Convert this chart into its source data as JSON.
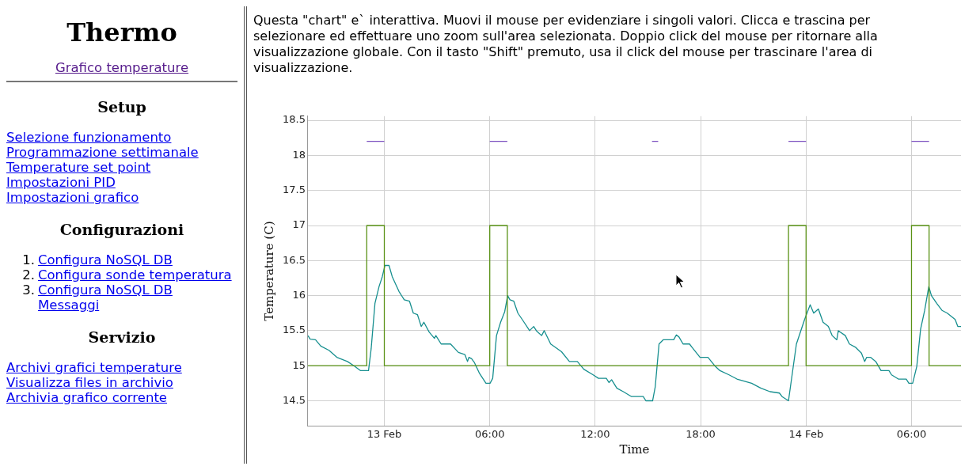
{
  "chart_data": [
    {
      "type": "other",
      "title": "Thermo",
      "annotations": [
        "Grafico temperature"
      ]
    },
    {
      "type": "other",
      "title": "Setup",
      "annotations": [
        "Selezione funzionamento",
        "Programmazione settimanale",
        "Temperature set point",
        "Impostazioni PID",
        "Impostazioni grafico"
      ]
    },
    {
      "type": "other",
      "title": "Configurazioni",
      "annotations": [
        "1. Configura NoSQL DB",
        "2. Configura sonde temperatura",
        "3. Configura NoSQL DB Messaggi"
      ]
    },
    {
      "type": "other",
      "title": "Servizio",
      "annotations": [
        "Archivi grafici temperature",
        "Visualizza files in archivio",
        "Archivia grafico corrente"
      ]
    },
    {
      "type": "line",
      "subtitle": "Questa \"chart\" e` interattiva. Muovi il mouse per evidenziare i singoli valori. Clicca e trascina per selezionare ed effettuare uno zoom sull'area selezionata. Doppio click del mouse per ritornare alla visualizzazione globale. Con il tasto \"Shift\" premuto, usa il click del mouse per trascinare l'area di visualizzazione.",
      "xlabel": "Time",
      "ylabel": "Temperature (C)",
      "grid": true,
      "marker": "none",
      "xlim": [
        "--02-12T19:39",
        "--02-14T08:49"
      ],
      "xticks": [
        {
          "value": "--02-13T00:00",
          "label": "13 Feb"
        },
        {
          "value": "--02-13T06:00",
          "label": "06:00"
        },
        {
          "value": "--02-13T12:00",
          "label": "12:00"
        },
        {
          "value": "--02-13T18:00",
          "label": "18:00"
        },
        {
          "value": "--02-14T00:00",
          "label": "14 Feb"
        },
        {
          "value": "--02-14T06:00",
          "label": "06:00"
        }
      ],
      "ylim": [
        14.14,
        18.56
      ],
      "yticks": [
        14.5,
        15,
        15.5,
        16,
        16.5,
        17,
        17.5,
        18,
        18.5
      ],
      "series": [
        {
          "type": "step",
          "color": "#5a9216",
          "x": [
            "--02-12T19:39",
            "--02-12T23:00",
            "--02-13T00:00",
            "--02-13T06:00",
            "--02-13T07:00",
            "--02-13T23:00",
            "--02-14T00:00",
            "--02-14T06:00",
            "--02-14T07:00",
            "--02-14T08:49"
          ],
          "values": [
            15,
            17,
            15,
            17,
            15,
            17,
            15,
            17,
            15,
            15
          ]
        },
        {
          "type": "line",
          "color": "#7b4fbf",
          "x": [
            "--02-12T23:00",
            "--02-13T00:00",
            "--02-13T00:01",
            "--02-13T06:00",
            "--02-13T07:00",
            "--02-13T07:01",
            "--02-13T15:14",
            "--02-13T15:35",
            "--02-13T15:36",
            "--02-13T23:00",
            "--02-14T00:00",
            "--02-14T00:01",
            "--02-14T06:00",
            "--02-14T07:00"
          ],
          "values": [
            18.2,
            18.2,
            null,
            18.2,
            18.2,
            null,
            18.2,
            18.2,
            null,
            18.2,
            18.2,
            null,
            18.2,
            18.2
          ]
        },
        {
          "type": "line",
          "color": "#178f8f",
          "x": [
            "--02-12T19:39",
            "--02-12T19:47",
            "--02-12T20:05",
            "--02-12T20:23",
            "--02-12T20:51",
            "--02-12T21:18",
            "--02-12T21:54",
            "--02-12T22:16",
            "--02-12T22:39",
            "--02-12T23:06",
            "--02-12T23:15",
            "--02-12T23:28",
            "--02-12T23:42",
            "--02-12T23:53",
            "--02-13T00:02",
            "--02-13T00:16",
            "--02-13T00:27",
            "--02-13T00:50",
            "--02-13T01:08",
            "--02-13T01:26",
            "--02-13T01:39",
            "--02-13T01:53",
            "--02-13T02:06",
            "--02-13T02:15",
            "--02-13T02:33",
            "--02-13T02:51",
            "--02-13T02:56",
            "--02-13T03:14",
            "--02-13T03:46",
            "--02-13T04:13",
            "--02-13T04:35",
            "--02-13T04:44",
            "--02-13T04:49",
            "--02-13T04:58",
            "--02-13T05:07",
            "--02-13T05:25",
            "--02-13T05:47",
            "--02-13T06:01",
            "--02-13T06:10",
            "--02-13T06:23",
            "--02-13T06:37",
            "--02-13T06:51",
            "--02-13T07:01",
            "--02-13T07:09",
            "--02-13T07:22",
            "--02-13T07:36",
            "--02-13T07:54",
            "--02-13T08:16",
            "--02-13T08:30",
            "--02-13T08:39",
            "--02-13T08:57",
            "--02-13T09:06",
            "--02-13T09:28",
            "--02-13T10:05",
            "--02-13T10:32",
            "--02-13T10:59",
            "--02-13T11:21",
            "--02-13T11:53",
            "--02-13T12:11",
            "--02-13T12:38",
            "--02-13T12:47",
            "--02-13T12:56",
            "--02-13T13:14",
            "--02-13T13:36",
            "--02-13T14:04",
            "--02-13T14:44",
            "--02-13T14:53",
            "--02-13T15:16",
            "--02-13T15:25",
            "--02-13T15:38",
            "--02-13T15:52",
            "--02-13T16:28",
            "--02-13T16:37",
            "--02-13T16:46",
            "--02-13T17:00",
            "--02-13T17:22",
            "--02-13T17:31",
            "--02-13T17:58",
            "--02-13T18:25",
            "--02-13T18:48",
            "--02-13T19:06",
            "--02-13T19:37",
            "--02-13T20:04",
            "--02-13T20:54",
            "--02-13T21:26",
            "--02-13T21:57",
            "--02-13T22:29",
            "--02-13T22:38",
            "--02-13T23:00",
            "--02-13T23:27",
            "--02-13T23:55",
            "--02-14T00:14",
            "--02-14T00:26",
            "--02-14T00:42",
            "--02-14T00:58",
            "--02-14T01:16",
            "--02-14T01:29",
            "--02-14T01:45",
            "--02-14T01:50",
            "--02-14T02:14",
            "--02-14T02:28",
            "--02-14T02:50",
            "--02-14T03:09",
            "--02-14T03:20",
            "--02-14T03:27",
            "--02-14T03:40",
            "--02-14T03:58",
            "--02-14T04:16",
            "--02-14T04:43",
            "--02-14T04:52",
            "--02-14T05:15",
            "--02-14T05:42",
            "--02-14T05:51",
            "--02-14T06:04",
            "--02-14T06:18",
            "--02-14T06:31",
            "--02-14T06:45",
            "--02-14T06:59",
            "--02-14T07:08",
            "--02-14T07:26",
            "--02-14T07:44",
            "--02-14T08:02",
            "--02-14T08:29",
            "--02-14T08:38",
            "--02-14T08:49"
          ],
          "values": [
            15.43,
            15.38,
            15.37,
            15.28,
            15.22,
            15.12,
            15.06,
            15.0,
            14.93,
            14.93,
            15.24,
            15.89,
            16.13,
            16.27,
            16.43,
            16.43,
            16.27,
            16.06,
            15.94,
            15.92,
            15.75,
            15.73,
            15.56,
            15.62,
            15.48,
            15.39,
            15.43,
            15.31,
            15.31,
            15.19,
            15.16,
            15.06,
            15.12,
            15.1,
            15.05,
            14.89,
            14.75,
            14.75,
            14.82,
            15.43,
            15.62,
            15.77,
            16.0,
            15.94,
            15.92,
            15.75,
            15.64,
            15.5,
            15.56,
            15.5,
            15.43,
            15.5,
            15.31,
            15.2,
            15.06,
            15.06,
            14.95,
            14.87,
            14.82,
            14.82,
            14.76,
            14.8,
            14.68,
            14.63,
            14.56,
            14.56,
            14.5,
            14.5,
            14.7,
            15.31,
            15.37,
            15.37,
            15.44,
            15.41,
            15.31,
            15.31,
            15.26,
            15.12,
            15.12,
            15.0,
            14.93,
            14.87,
            14.81,
            14.75,
            14.68,
            14.63,
            14.61,
            14.56,
            14.5,
            15.31,
            15.66,
            15.87,
            15.75,
            15.81,
            15.62,
            15.56,
            15.43,
            15.37,
            15.5,
            15.43,
            15.31,
            15.26,
            15.18,
            15.06,
            15.12,
            15.12,
            15.06,
            14.93,
            14.93,
            14.87,
            14.81,
            14.81,
            14.75,
            14.75,
            14.99,
            15.52,
            15.79,
            16.13,
            16.0,
            15.89,
            15.79,
            15.75,
            15.66,
            15.56,
            15.56
          ]
        }
      ]
    }
  ]
}
